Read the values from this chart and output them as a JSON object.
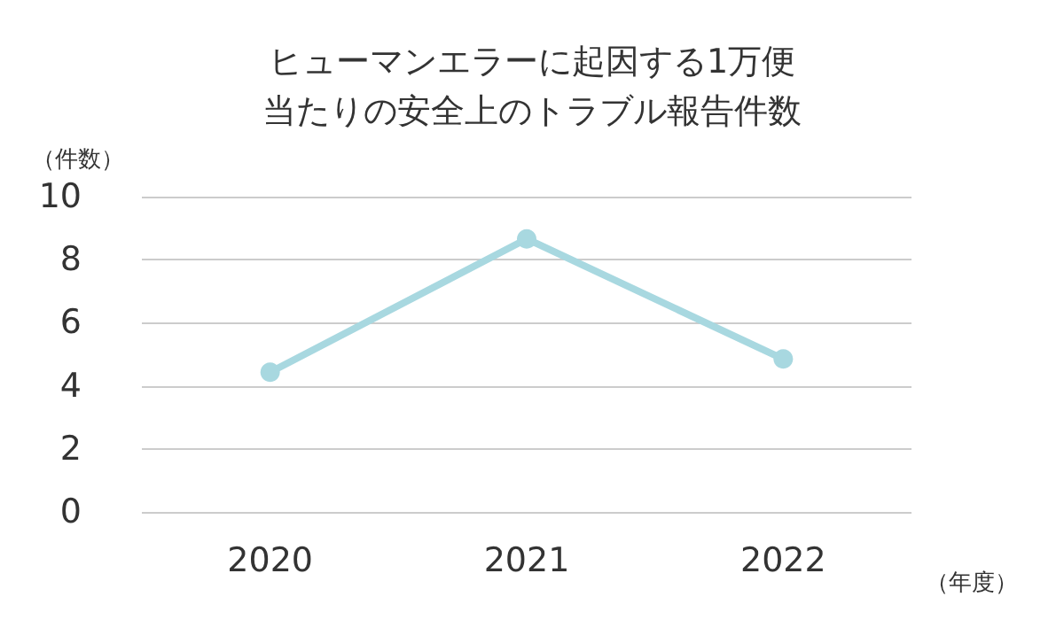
{
  "chart_data": {
    "type": "line",
    "title": "ヒューマンエラーに起因する1万便当たりの安全上のトラブル報告件数",
    "ylabel": "（件数）",
    "xlabel": "（年度）",
    "categories": [
      "2020",
      "2021",
      "2022"
    ],
    "series": [
      {
        "color": "#a8d8e0",
        "values": [
          4.43,
          8.66,
          4.85
        ]
      }
    ],
    "ylim": [
      0,
      10
    ],
    "yticks": [
      0,
      2,
      4,
      6,
      8,
      10
    ],
    "grid": "y",
    "marker": "circle",
    "line_style": "solid"
  }
}
